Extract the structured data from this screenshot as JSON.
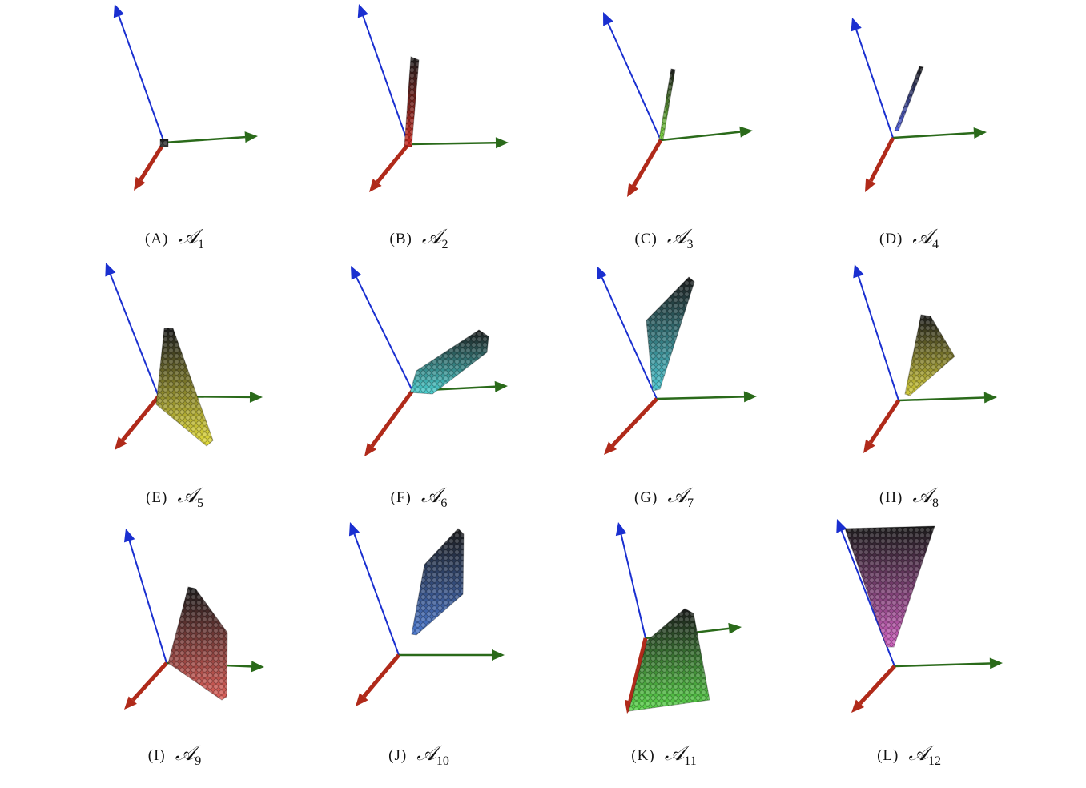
{
  "panels": [
    {
      "tag": "(A)",
      "symbol": "𝒜",
      "subscript": "1"
    },
    {
      "tag": "(B)",
      "symbol": "𝒜",
      "subscript": "2"
    },
    {
      "tag": "(C)",
      "symbol": "𝒜",
      "subscript": "3"
    },
    {
      "tag": "(D)",
      "symbol": "𝒜",
      "subscript": "4"
    },
    {
      "tag": "(E)",
      "symbol": "𝒜",
      "subscript": "5"
    },
    {
      "tag": "(F)",
      "symbol": "𝒜",
      "subscript": "6"
    },
    {
      "tag": "(G)",
      "symbol": "𝒜",
      "subscript": "7"
    },
    {
      "tag": "(H)",
      "symbol": "𝒜",
      "subscript": "8"
    },
    {
      "tag": "(I)",
      "symbol": "𝒜",
      "subscript": "9"
    },
    {
      "tag": "(J)",
      "symbol": "𝒜",
      "subscript": "10"
    },
    {
      "tag": "(K)",
      "symbol": "𝒜",
      "subscript": "11"
    },
    {
      "tag": "(L)",
      "symbol": "𝒜",
      "subscript": "12"
    }
  ]
}
